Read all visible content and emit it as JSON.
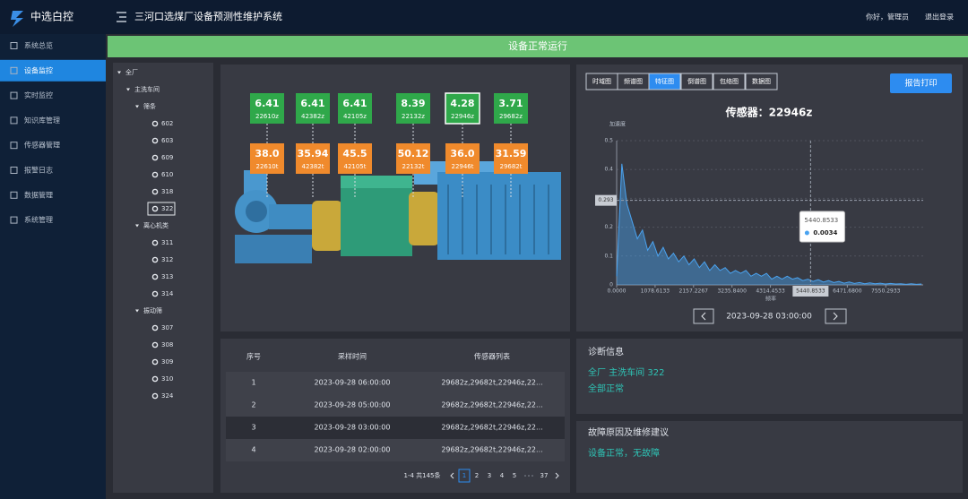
{
  "header": {
    "logo": "中选白控",
    "title": "三河口选煤厂设备预测性维护系统",
    "greeting": "你好，管理员",
    "logout": "退出登录"
  },
  "menu": [
    "系统总览",
    "设备监控",
    "实时监控",
    "知识库管理",
    "传感器管理",
    "报警日志",
    "数据管理",
    "系统管理"
  ],
  "banner": "设备正常运行",
  "tree": {
    "label": "全厂",
    "children": [
      {
        "label": "主洗车间",
        "children": [
          {
            "label": "筛条",
            "children": [
              "602",
              "603",
              "609",
              "610",
              "318",
              "322"
            ]
          },
          {
            "label": "离心机类",
            "children": [
              "311",
              "312",
              "313",
              "314"
            ]
          },
          {
            "label": "振动筛",
            "children": [
              "307",
              "308",
              "309",
              "310",
              "324"
            ]
          }
        ]
      }
    ]
  },
  "sensors": {
    "top": [
      {
        "value": "6.41",
        "id": "22610z"
      },
      {
        "value": "6.41",
        "id": "42382z"
      },
      {
        "value": "6.41",
        "id": "42105z"
      },
      {
        "value": "8.39",
        "id": "22132z"
      },
      {
        "value": "4.28",
        "id": "22946z"
      },
      {
        "value": "3.71",
        "id": "29682z"
      }
    ],
    "bottom": [
      {
        "value": "38.0",
        "id": "22610t"
      },
      {
        "value": "35.94",
        "id": "42382t"
      },
      {
        "value": "45.5",
        "id": "42105t"
      },
      {
        "value": "50.12",
        "id": "22132t"
      },
      {
        "value": "36.0",
        "id": "22946t"
      },
      {
        "value": "31.59",
        "id": "29682t"
      }
    ]
  },
  "tabs": [
    "时域图",
    "频谱图",
    "特征图",
    "倒谱图",
    "包络图",
    "数据图"
  ],
  "print_button": "报告打印",
  "chart_data": {
    "type": "area",
    "title": "传感器：22946z",
    "y_label": "加速度",
    "x_label": "频率",
    "color": "#4aa3f0",
    "x": [
      0,
      145,
      290,
      435,
      580,
      725,
      870,
      1015,
      1160,
      1305,
      1450,
      1595,
      1740,
      1885,
      2030,
      2175,
      2320,
      2465,
      2610,
      2755,
      2900,
      3045,
      3190,
      3335,
      3480,
      3625,
      3770,
      3915,
      4060,
      4205,
      4350,
      4495,
      4640,
      4785,
      4930,
      5075,
      5220,
      5365,
      5510,
      5655,
      5800,
      5945,
      6090,
      6235,
      6380,
      6525,
      6670,
      6815,
      6960,
      7105,
      7250,
      7395,
      7540,
      7685,
      7830,
      7975,
      8120,
      8265,
      8410,
      8555
    ],
    "values": [
      0.03,
      0.42,
      0.28,
      0.22,
      0.16,
      0.19,
      0.12,
      0.15,
      0.1,
      0.13,
      0.09,
      0.11,
      0.08,
      0.1,
      0.07,
      0.09,
      0.06,
      0.08,
      0.05,
      0.07,
      0.05,
      0.06,
      0.04,
      0.05,
      0.04,
      0.05,
      0.03,
      0.04,
      0.03,
      0.04,
      0.02,
      0.03,
      0.02,
      0.03,
      0.02,
      0.025,
      0.015,
      0.02,
      0.012,
      0.018,
      0.01,
      0.015,
      0.008,
      0.012,
      0.006,
      0.01,
      0.005,
      0.008,
      0.004,
      0.007,
      0.004,
      0.006,
      0.003,
      0.005,
      0.003,
      0.004,
      0.002,
      0.004,
      0.002,
      0.003
    ],
    "xlim": [
      0,
      8600
    ],
    "ylim": [
      0,
      0.5
    ],
    "yticks": [
      0,
      0.1,
      0.2,
      0.3,
      0.4,
      0.5
    ],
    "xticks": [
      {
        "value": 0,
        "label": "0.0000"
      },
      {
        "value": 1078.6133,
        "label": "1078.6133"
      },
      {
        "value": 2157.2267,
        "label": "2157.2267"
      },
      {
        "value": 3235.84,
        "label": "3235.8400"
      },
      {
        "value": 4314.4533,
        "label": "4314.4533"
      },
      {
        "value": 6471.68,
        "label": "6471.6800"
      },
      {
        "value": 7550.2933,
        "label": "7550.2933"
      }
    ],
    "grid": true,
    "crosshair": {
      "x": {
        "value": 5440.8533,
        "label": "5440.8533"
      },
      "y": {
        "value": 0.293,
        "label": "0.293"
      }
    },
    "tooltip": {
      "title": "5440.8533",
      "value": "0.0034"
    },
    "date": "2023-09-28 03:00:00"
  },
  "table": {
    "headers": [
      "序号",
      "采样时间",
      "传感器列表"
    ],
    "rows": [
      [
        "1",
        "2023-09-28 06:00:00",
        "29682z,29682t,22946z,22..."
      ],
      [
        "2",
        "2023-09-28 05:00:00",
        "29682z,29682t,22946z,22..."
      ],
      [
        "3",
        "2023-09-28 03:00:00",
        "29682z,29682t,22946z,22..."
      ],
      [
        "4",
        "2023-09-28 02:00:00",
        "29682z,29682t,22946z,22..."
      ]
    ]
  },
  "pagination": {
    "summary": "1-4 共145条",
    "pages": [
      "1",
      "2",
      "3",
      "4",
      "5",
      "37"
    ]
  },
  "diagnosis": {
    "title": "诊断信息",
    "lines": [
      "全厂 主洗车间 322",
      "全部正常"
    ]
  },
  "advice": {
    "title": "故障原因及维修建议",
    "text": "设备正常，无故障"
  }
}
